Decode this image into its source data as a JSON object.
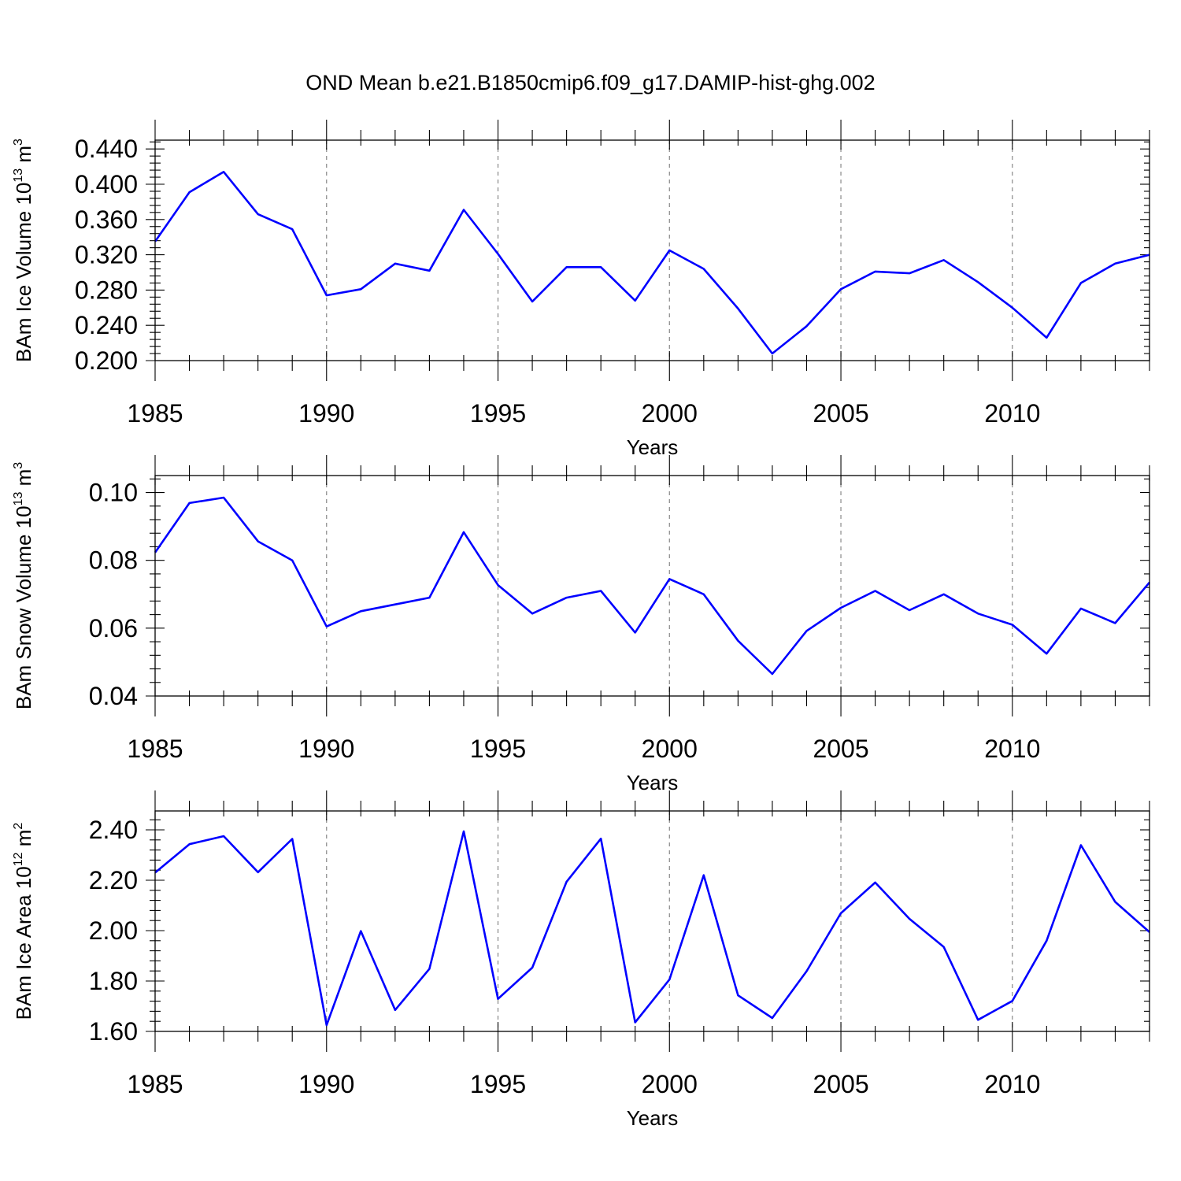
{
  "title": "OND Mean b.e21.B1850cmip6.f09_g17.DAMIP-hist-ghg.002",
  "chart_data": [
    {
      "type": "line",
      "ylabel": {
        "text": "BAm Ice Volume 10",
        "exponent": "13",
        "unit": " m",
        "unit_exponent": "3"
      },
      "xlabel": "Years",
      "xlim": [
        1985,
        2014
      ],
      "ylim": [
        0.2,
        0.45
      ],
      "x_ticks": [
        1985,
        1990,
        1995,
        2000,
        2005,
        2010
      ],
      "x_tick_labels": [
        "1985",
        "1990",
        "1995",
        "2000",
        "2005",
        "2010"
      ],
      "y_ticks": [
        0.2,
        0.24,
        0.28,
        0.32,
        0.36,
        0.4,
        0.44
      ],
      "y_tick_labels": [
        "0.200",
        "0.240",
        "0.280",
        "0.320",
        "0.360",
        "0.400",
        "0.440"
      ],
      "grid": "dashed vertical at labeled years",
      "color": "#0000ff",
      "x": [
        1985,
        1986,
        1987,
        1988,
        1989,
        1990,
        1991,
        1992,
        1993,
        1994,
        1995,
        1996,
        1997,
        1998,
        1999,
        2000,
        2001,
        2002,
        2003,
        2004,
        2005,
        2006,
        2007,
        2008,
        2009,
        2010,
        2011,
        2012,
        2013,
        2014
      ],
      "values": [
        0.335,
        0.391,
        0.414,
        0.366,
        0.349,
        0.274,
        0.281,
        0.31,
        0.302,
        0.371,
        0.321,
        0.267,
        0.306,
        0.306,
        0.268,
        0.325,
        0.304,
        0.259,
        0.208,
        0.239,
        0.281,
        0.301,
        0.299,
        0.314,
        0.289,
        0.26,
        0.226,
        0.288,
        0.31,
        0.32
      ]
    },
    {
      "type": "line",
      "ylabel": {
        "text": "BAm Snow Volume 10",
        "exponent": "13",
        "unit": " m",
        "unit_exponent": "3"
      },
      "xlabel": "Years",
      "xlim": [
        1985,
        2014
      ],
      "ylim": [
        0.04,
        0.105
      ],
      "x_ticks": [
        1985,
        1990,
        1995,
        2000,
        2005,
        2010
      ],
      "x_tick_labels": [
        "1985",
        "1990",
        "1995",
        "2000",
        "2005",
        "2010"
      ],
      "y_ticks": [
        0.04,
        0.06,
        0.08,
        0.1
      ],
      "y_tick_labels": [
        "0.04",
        "0.06",
        "0.08",
        "0.10"
      ],
      "grid": "dashed vertical at labeled years",
      "color": "#0000ff",
      "x": [
        1985,
        1986,
        1987,
        1988,
        1989,
        1990,
        1991,
        1992,
        1993,
        1994,
        1995,
        1996,
        1997,
        1998,
        1999,
        2000,
        2001,
        2002,
        2003,
        2004,
        2005,
        2006,
        2007,
        2008,
        2009,
        2010,
        2011,
        2012,
        2013,
        2014
      ],
      "values": [
        0.0823,
        0.0969,
        0.0985,
        0.0856,
        0.08,
        0.0605,
        0.065,
        0.067,
        0.069,
        0.0883,
        0.0727,
        0.0643,
        0.069,
        0.071,
        0.0587,
        0.0745,
        0.07,
        0.0563,
        0.0465,
        0.0592,
        0.066,
        0.071,
        0.0653,
        0.07,
        0.0643,
        0.061,
        0.0525,
        0.0658,
        0.0615,
        0.0735
      ]
    },
    {
      "type": "line",
      "ylabel": {
        "text": "BAm Ice Area 10",
        "exponent": "12",
        "unit": " m",
        "unit_exponent": "2"
      },
      "xlabel": "Years",
      "xlim": [
        1985,
        2014
      ],
      "ylim": [
        1.6,
        2.475
      ],
      "x_ticks": [
        1985,
        1990,
        1995,
        2000,
        2005,
        2010
      ],
      "x_tick_labels": [
        "1985",
        "1990",
        "1995",
        "2000",
        "2005",
        "2010"
      ],
      "y_ticks": [
        1.6,
        1.8,
        2.0,
        2.2,
        2.4
      ],
      "y_tick_labels": [
        "1.60",
        "1.80",
        "2.00",
        "2.20",
        "2.40"
      ],
      "grid": "dashed vertical at labeled years",
      "color": "#0000ff",
      "x": [
        1985,
        1986,
        1987,
        1988,
        1989,
        1990,
        1991,
        1992,
        1993,
        1994,
        1995,
        1996,
        1997,
        1998,
        1999,
        2000,
        2001,
        2002,
        2003,
        2004,
        2005,
        2006,
        2007,
        2008,
        2009,
        2010,
        2011,
        2012,
        2013,
        2014
      ],
      "values": [
        2.23,
        2.343,
        2.375,
        2.232,
        2.364,
        1.625,
        1.998,
        1.685,
        1.848,
        2.394,
        1.729,
        1.853,
        2.194,
        2.365,
        1.636,
        1.806,
        2.22,
        1.743,
        1.653,
        1.839,
        2.069,
        2.191,
        2.047,
        1.935,
        1.646,
        1.721,
        1.96,
        2.339,
        2.114,
        1.994
      ]
    }
  ]
}
